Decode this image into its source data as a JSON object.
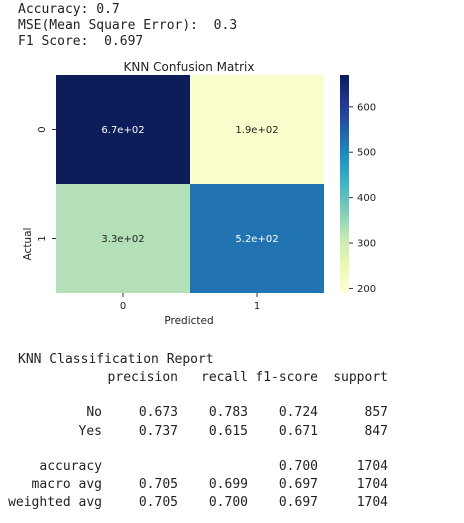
{
  "metrics": {
    "accuracy_line": "Accuracy: 0.7",
    "mse_line": "MSE(Mean Square Error):  0.3",
    "f1_line": "F1 Score:  0.697"
  },
  "chart_data": {
    "type": "heatmap",
    "title": "KNN Confusion Matrix",
    "xlabel": "Predicted",
    "ylabel": "Actual",
    "x_tick_labels": [
      "0",
      "1"
    ],
    "y_tick_labels": [
      "0",
      "1"
    ],
    "values": [
      [
        670,
        190
      ],
      [
        330,
        520
      ]
    ],
    "annotations": [
      [
        "6.7e+02",
        "1.9e+02"
      ],
      [
        "3.3e+02",
        "5.2e+02"
      ]
    ],
    "colormap": "YlGnBu",
    "cell_colors": [
      [
        "#0c1d59",
        "#fafdcc"
      ],
      [
        "#b3e0b6",
        "#2173b2"
      ]
    ],
    "annotation_colors": [
      [
        "#ffffff",
        "#222222"
      ],
      [
        "#222222",
        "#ffffff"
      ]
    ],
    "colorbar": {
      "ticks": [
        "200",
        "300",
        "400",
        "500",
        "600"
      ],
      "range": [
        190,
        670
      ],
      "stops": [
        "#ffffd9",
        "#edf8b1",
        "#c7e9b4",
        "#7fcdbb",
        "#41b6c4",
        "#1d91c0",
        "#225ea8",
        "#253494",
        "#081d58"
      ]
    }
  },
  "report": {
    "title": "KNN Classification Report",
    "headers": [
      "precision",
      "recall",
      "f1-score",
      "support"
    ],
    "rows": [
      {
        "label": "No",
        "precision": "0.673",
        "recall": "0.783",
        "f1": "0.724",
        "support": "857"
      },
      {
        "label": "Yes",
        "precision": "0.737",
        "recall": "0.615",
        "f1": "0.671",
        "support": "847"
      }
    ],
    "summary": [
      {
        "label": "accuracy",
        "precision": "",
        "recall": "",
        "f1": "0.700",
        "support": "1704"
      },
      {
        "label": "macro avg",
        "precision": "0.705",
        "recall": "0.699",
        "f1": "0.697",
        "support": "1704"
      },
      {
        "label": "weighted avg",
        "precision": "0.705",
        "recall": "0.700",
        "f1": "0.697",
        "support": "1704"
      }
    ]
  }
}
